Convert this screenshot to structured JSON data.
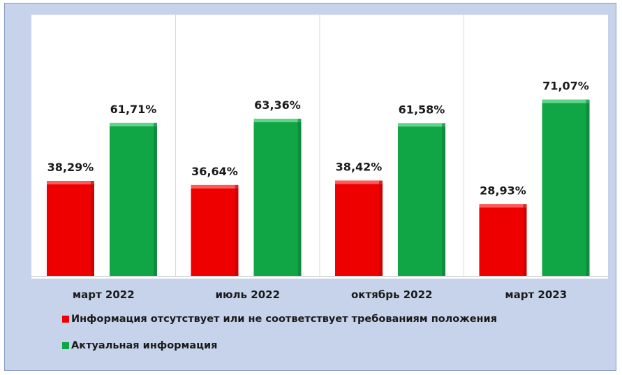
{
  "colors": {
    "red": "#ee0000",
    "green": "#10a646",
    "background": "#c6d3ea"
  },
  "chart_data": {
    "type": "bar",
    "categories": [
      "март 2022",
      "июль 2022",
      "октябрь 2022",
      "март 2023"
    ],
    "series": [
      {
        "name": "Информация отсутствует или не соответствует требованиям положения",
        "color": "#ee0000",
        "values": [
          38.29,
          36.64,
          38.42,
          28.93
        ],
        "labels": [
          "38,29%",
          "36,64%",
          "38,42%",
          "28,93%"
        ]
      },
      {
        "name": "Актуальная информация",
        "color": "#10a646",
        "values": [
          61.71,
          63.36,
          61.58,
          71.07
        ],
        "labels": [
          "61,71%",
          "63,36%",
          "61,58%",
          "71,07%"
        ]
      }
    ],
    "ylim": [
      0,
      100
    ],
    "grid": false,
    "legend_position": "bottom-left"
  }
}
